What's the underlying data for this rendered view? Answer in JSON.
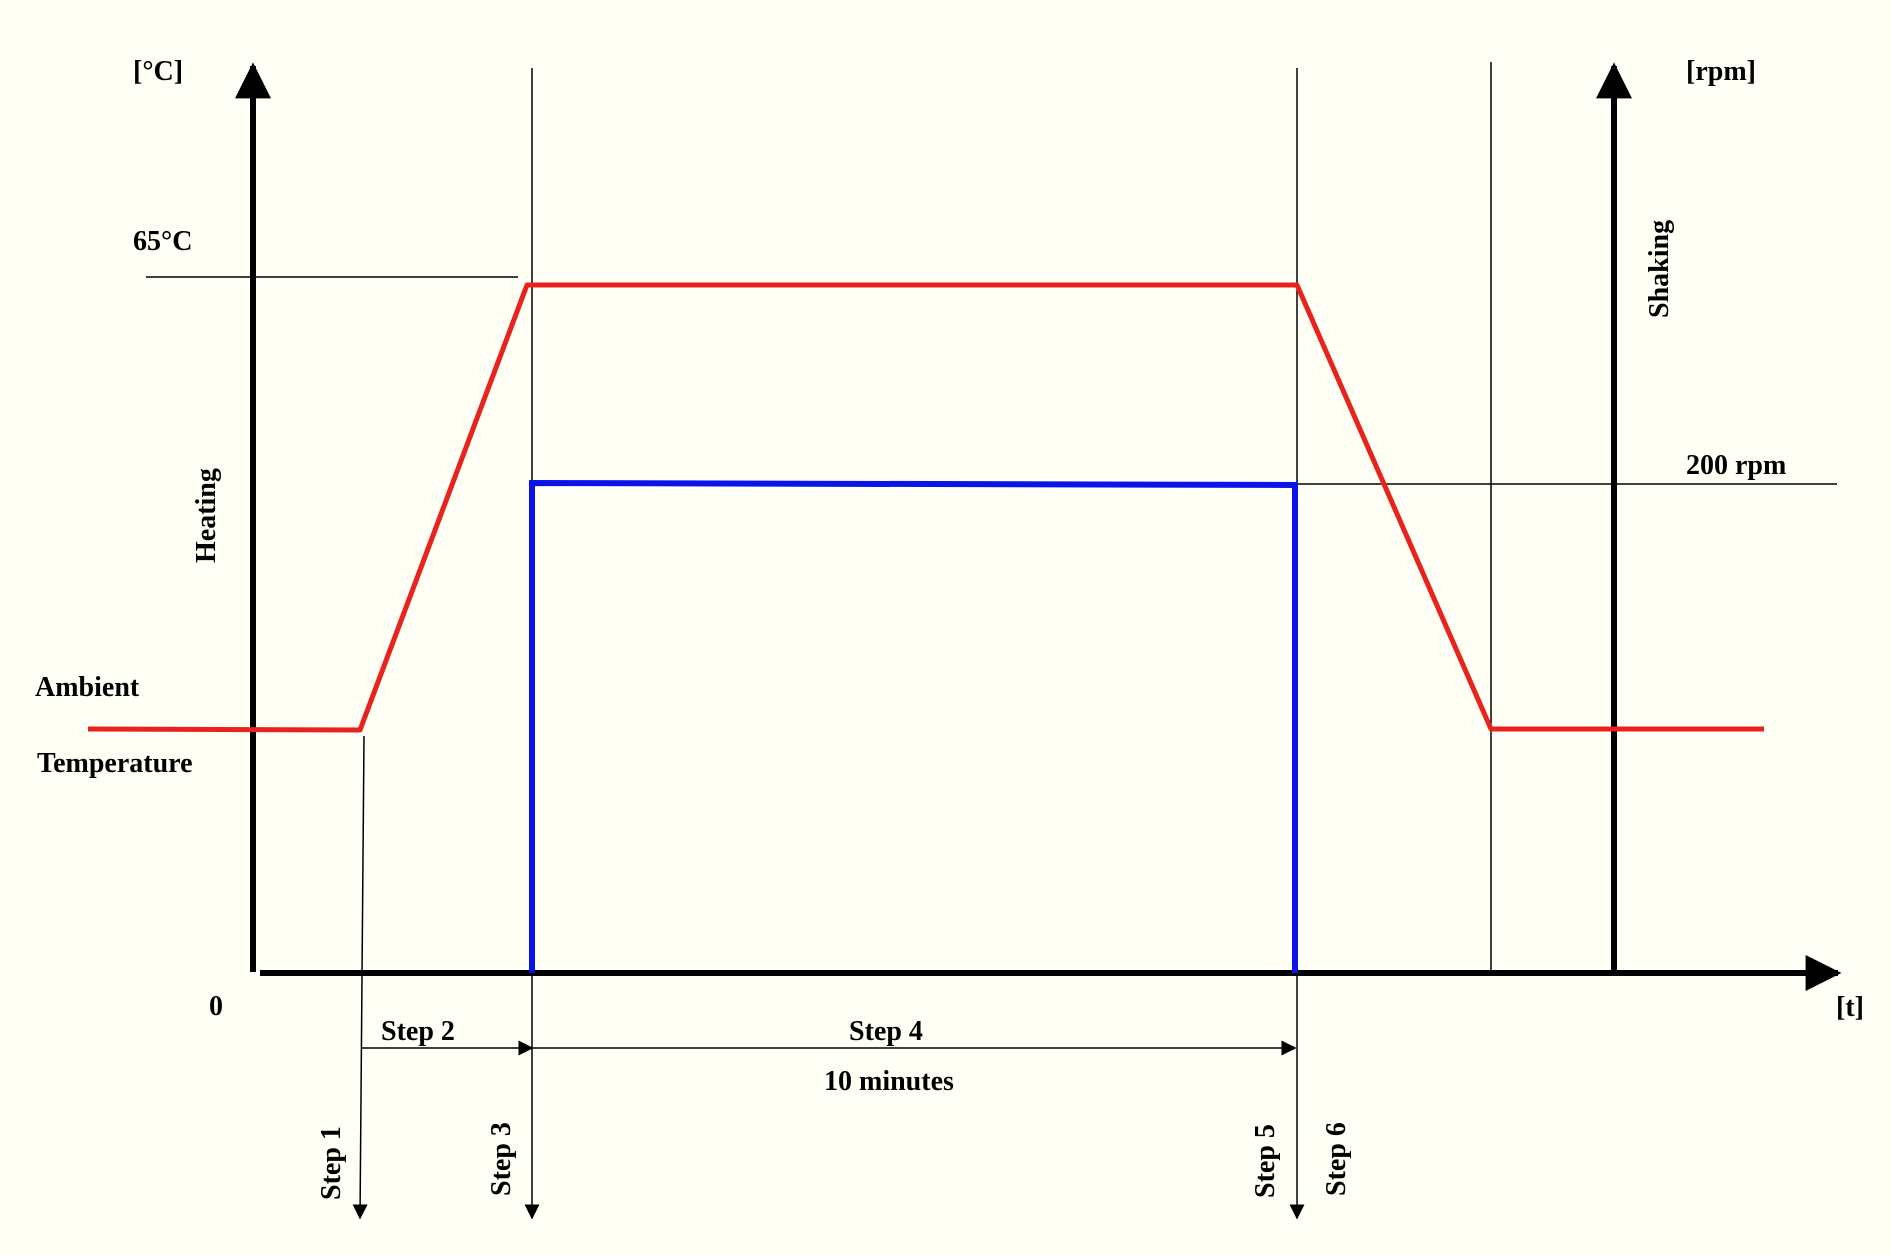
{
  "colors": {
    "background": "#fffff5",
    "temperature_profile": "#e8221d",
    "shaking_profile": "#0a13e8",
    "axis": "#000000"
  },
  "labels": {
    "temp_unit": "[°C]",
    "rpm_unit": "[rpm]",
    "time_unit": "[t]",
    "temp_setpoint": "65°C",
    "rpm_setpoint": "200 rpm",
    "heating": "Heating",
    "shaking": "Shaking",
    "ambient_line1": "Ambient",
    "ambient_line2": "Temperature",
    "origin": "0",
    "duration": "10 minutes"
  },
  "steps": {
    "step1": "Step 1",
    "step2": "Step 2",
    "step3": "Step 3",
    "step4": "Step 4",
    "step5": "Step 5",
    "step6": "Step 6"
  }
}
